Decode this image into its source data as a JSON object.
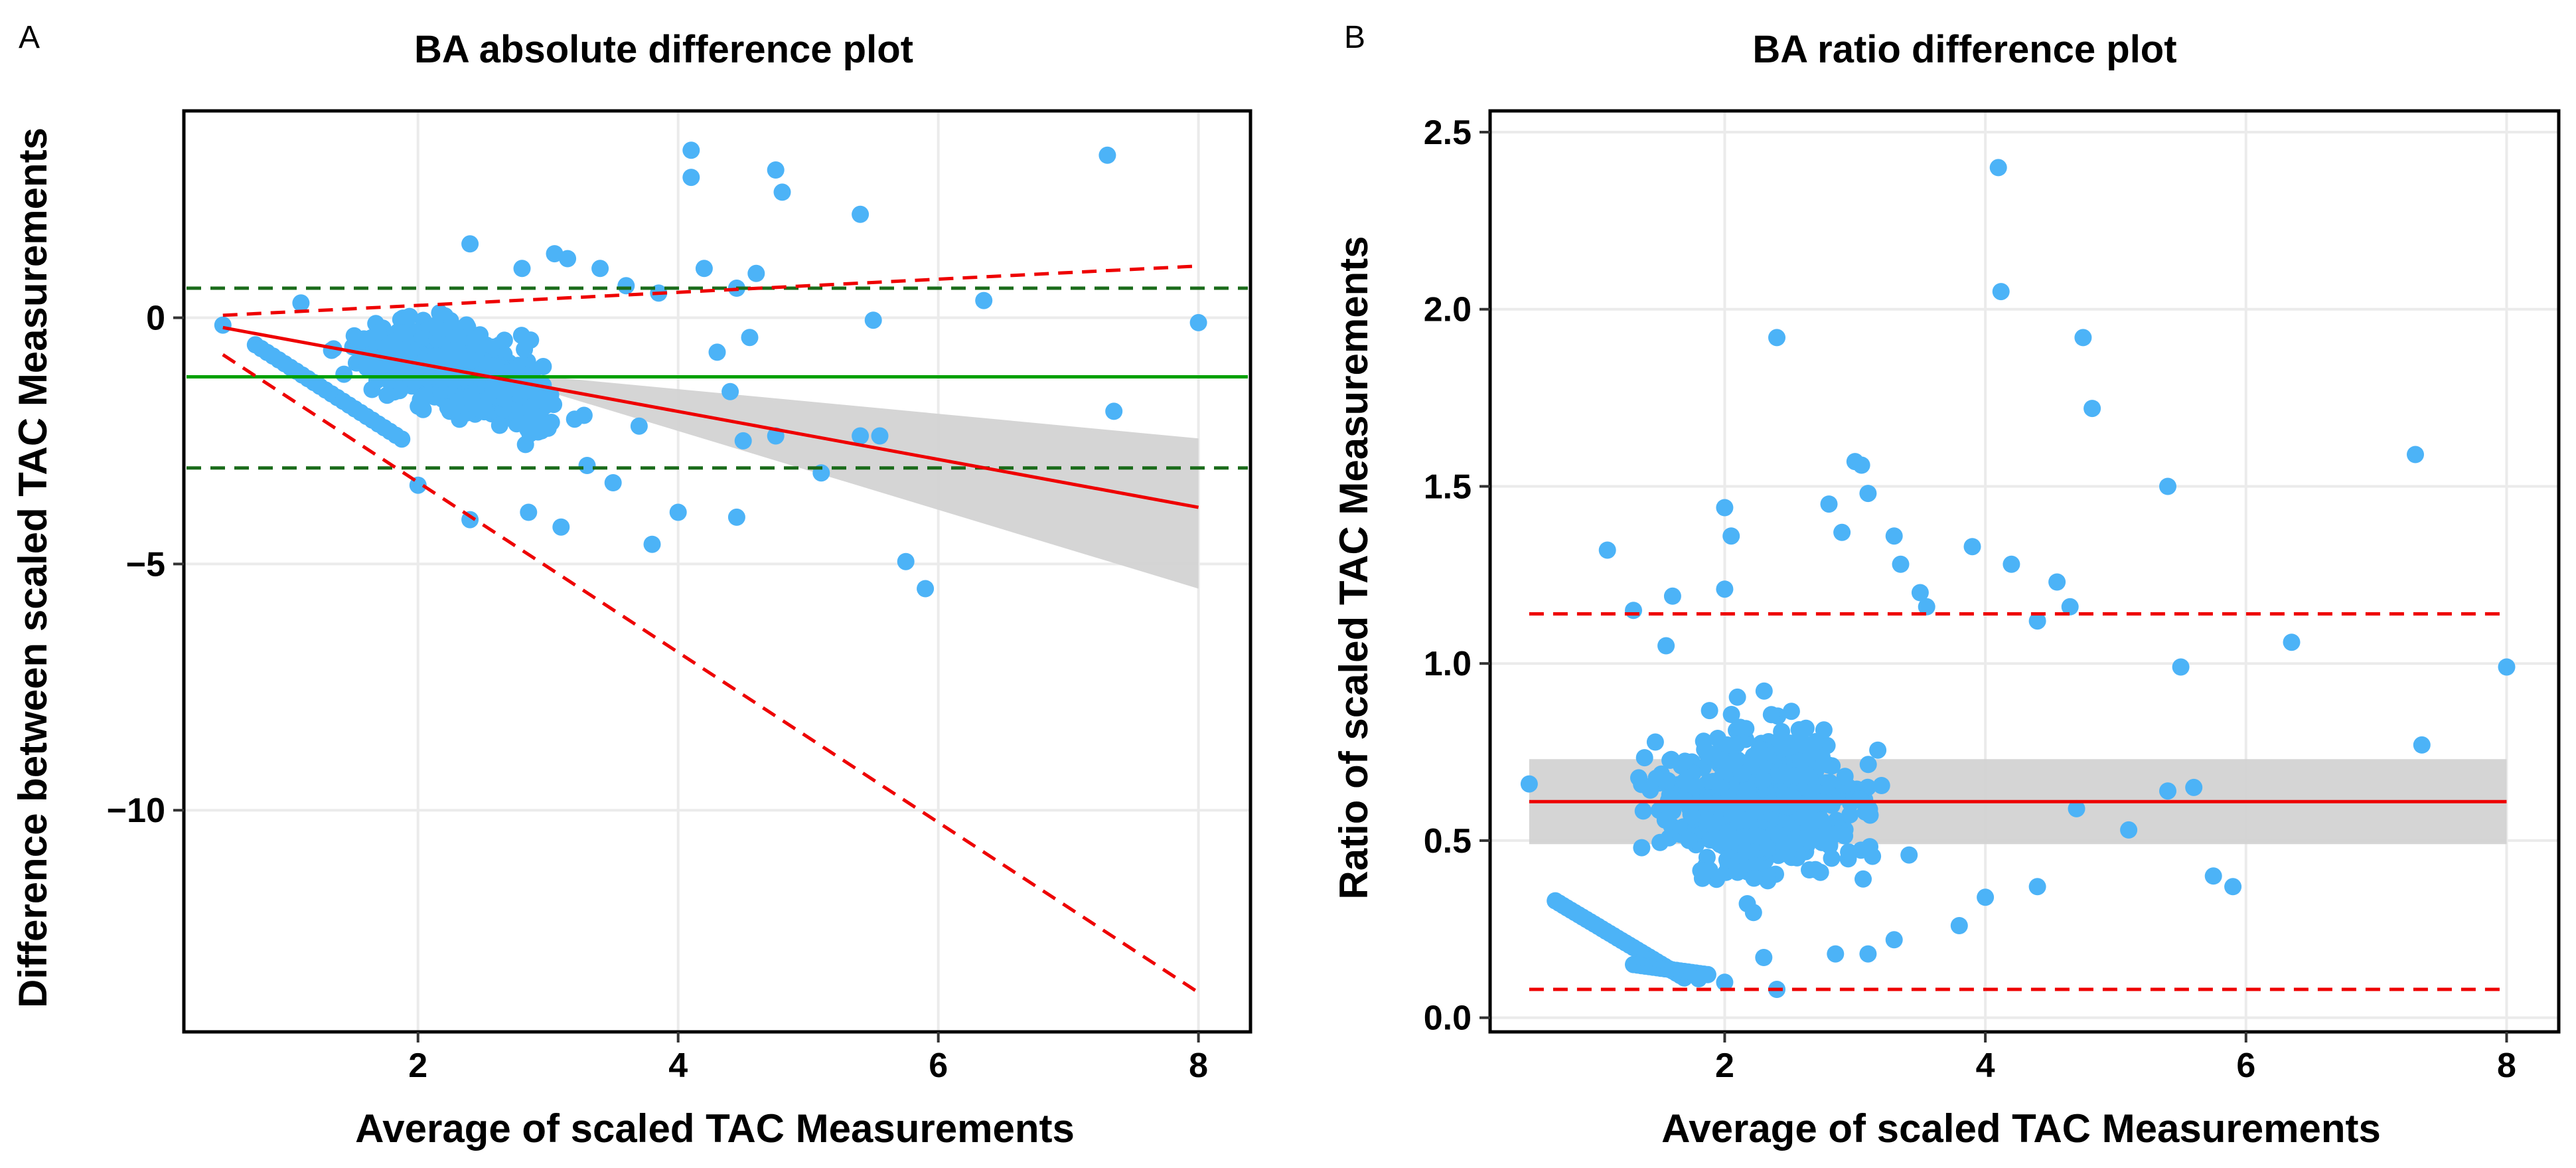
{
  "chart_data": [
    {
      "panel": "A",
      "type": "scatter",
      "title": "BA absolute difference plot",
      "xlabel": "Average of scaled TAC Measurements",
      "ylabel": "Difference between scaled TAC Measurements",
      "xlim": [
        0.2,
        8.4
      ],
      "ylim": [
        -14.5,
        4.2
      ],
      "xticks": [
        2,
        4,
        6,
        8
      ],
      "yticks": [
        0,
        -5,
        -10
      ],
      "ytick_labels": [
        "0",
        "−5",
        "−10"
      ],
      "point_color": "#4cb3f7",
      "mean_line": {
        "y": -1.2,
        "color": "#00a000",
        "style": "solid"
      },
      "limits_of_agreement": {
        "lower": -3.05,
        "upper": 0.6,
        "color": "#1a6b1a",
        "style": "dashed"
      },
      "regression": {
        "x": [
          0.5,
          8.0
        ],
        "y": [
          -0.2,
          -3.85
        ],
        "color": "#ee0000"
      },
      "confidence_band": {
        "x": [
          3.0,
          8.0
        ],
        "lower": [
          -1.5,
          -5.5
        ],
        "upper": [
          -1.2,
          -2.45
        ],
        "color": "#d3d3d3"
      },
      "prediction_limits": [
        {
          "x": [
            0.5,
            8.0
          ],
          "y": [
            0.05,
            1.05
          ],
          "color": "#ee0000",
          "style": "dashed"
        },
        {
          "x": [
            0.5,
            8.0
          ],
          "y": [
            -0.75,
            -13.7
          ],
          "color": "#ee0000",
          "style": "dashed"
        }
      ],
      "outliers": [
        [
          0.5,
          -0.15
        ],
        [
          1.1,
          0.3
        ],
        [
          2.4,
          1.5
        ],
        [
          2.8,
          1.0
        ],
        [
          3.05,
          1.3
        ],
        [
          3.15,
          1.2
        ],
        [
          3.4,
          1.0
        ],
        [
          3.6,
          0.65
        ],
        [
          3.85,
          0.5
        ],
        [
          4.1,
          3.4
        ],
        [
          4.1,
          2.85
        ],
        [
          4.2,
          1.0
        ],
        [
          4.45,
          0.6
        ],
        [
          4.6,
          0.9
        ],
        [
          4.75,
          3.0
        ],
        [
          4.8,
          2.55
        ],
        [
          5.4,
          2.1
        ],
        [
          5.5,
          -0.05
        ],
        [
          6.35,
          0.35
        ],
        [
          7.3,
          3.3
        ],
        [
          7.35,
          -1.9
        ],
        [
          8.0,
          -0.1
        ],
        [
          2.0,
          -3.4
        ],
        [
          2.4,
          -4.1
        ],
        [
          2.85,
          -3.95
        ],
        [
          3.1,
          -4.25
        ],
        [
          3.5,
          -3.35
        ],
        [
          3.8,
          -4.6
        ],
        [
          4.0,
          -3.95
        ],
        [
          4.45,
          -4.05
        ],
        [
          4.5,
          -2.5
        ],
        [
          4.75,
          -2.4
        ],
        [
          5.1,
          -3.15
        ],
        [
          5.4,
          -2.4
        ],
        [
          5.55,
          -2.4
        ],
        [
          5.75,
          -4.95
        ],
        [
          5.9,
          -5.5
        ],
        [
          4.4,
          -1.5
        ],
        [
          4.3,
          -0.7
        ],
        [
          4.55,
          -0.4
        ],
        [
          3.7,
          -2.2
        ],
        [
          3.3,
          -3.0
        ]
      ]
    },
    {
      "panel": "B",
      "type": "scatter",
      "title": "BA ratio difference plot",
      "xlabel": "Average of scaled TAC Measurements",
      "ylabel": "Ratio of scaled TAC Measurements",
      "xlim": [
        0.2,
        8.4
      ],
      "ylim": [
        -0.04,
        2.56
      ],
      "xticks": [
        2,
        4,
        6,
        8
      ],
      "yticks": [
        0.0,
        0.5,
        1.0,
        1.5,
        2.0,
        2.5
      ],
      "ytick_labels": [
        "0.0",
        "0.5",
        "1.0",
        "1.5",
        "2.0",
        "2.5"
      ],
      "point_color": "#4cb3f7",
      "mean_line": {
        "y": 0.61,
        "color": "#ee0000",
        "style": "solid"
      },
      "limits_of_agreement": {
        "lower": 0.08,
        "upper": 1.14,
        "color": "#ee0000",
        "style": "dashed"
      },
      "confidence_band": {
        "x": [
          0.5,
          8.0
        ],
        "lower": [
          0.49,
          0.49
        ],
        "upper": [
          0.73,
          0.73
        ],
        "color": "#d3d3d3"
      },
      "outliers": [
        [
          0.5,
          0.66
        ],
        [
          1.1,
          1.32
        ],
        [
          1.3,
          1.15
        ],
        [
          1.6,
          1.19
        ],
        [
          1.55,
          1.05
        ],
        [
          2.0,
          1.44
        ],
        [
          2.05,
          1.36
        ],
        [
          2.0,
          1.21
        ],
        [
          2.4,
          1.92
        ],
        [
          2.8,
          1.45
        ],
        [
          2.9,
          1.37
        ],
        [
          3.0,
          1.57
        ],
        [
          3.05,
          1.56
        ],
        [
          3.1,
          1.48
        ],
        [
          3.3,
          1.36
        ],
        [
          3.35,
          1.28
        ],
        [
          3.5,
          1.2
        ],
        [
          3.55,
          1.16
        ],
        [
          3.9,
          1.33
        ],
        [
          4.1,
          2.4
        ],
        [
          4.12,
          2.05
        ],
        [
          4.2,
          1.28
        ],
        [
          4.4,
          1.12
        ],
        [
          4.55,
          1.23
        ],
        [
          4.65,
          1.16
        ],
        [
          4.75,
          1.92
        ],
        [
          4.82,
          1.72
        ],
        [
          5.4,
          1.5
        ],
        [
          5.5,
          0.99
        ],
        [
          6.35,
          1.06
        ],
        [
          7.3,
          1.59
        ],
        [
          7.35,
          0.77
        ],
        [
          8.0,
          0.99
        ],
        [
          5.1,
          0.53
        ],
        [
          5.4,
          0.64
        ],
        [
          5.6,
          0.65
        ],
        [
          5.75,
          0.4
        ],
        [
          5.9,
          0.37
        ],
        [
          4.4,
          0.37
        ],
        [
          4.7,
          0.59
        ],
        [
          3.8,
          0.26
        ],
        [
          4.0,
          0.34
        ],
        [
          2.4,
          0.08
        ],
        [
          2.0,
          0.1
        ],
        [
          1.8,
          0.11
        ],
        [
          2.3,
          0.17
        ],
        [
          2.85,
          0.18
        ],
        [
          3.1,
          0.18
        ],
        [
          3.3,
          0.22
        ]
      ]
    }
  ]
}
